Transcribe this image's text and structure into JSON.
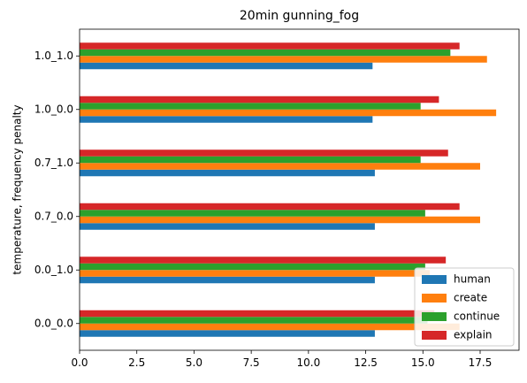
{
  "chart_data": {
    "type": "bar",
    "orientation": "horizontal",
    "title": "20min gunning_fog",
    "xlabel": "",
    "ylabel": "temperature, frequency penalty",
    "categories": [
      "0.0_0.0",
      "0.0_1.0",
      "0.7_0.0",
      "0.7_1.0",
      "1.0_0.0",
      "1.0_1.0"
    ],
    "series": [
      {
        "name": "human",
        "color": "#1f77b4",
        "values": [
          12.9,
          12.9,
          12.9,
          12.9,
          12.8,
          12.8
        ]
      },
      {
        "name": "create",
        "color": "#ff7f0e",
        "values": [
          16.6,
          15.3,
          17.5,
          17.5,
          18.2,
          17.8
        ]
      },
      {
        "name": "continue",
        "color": "#2ca02c",
        "values": [
          15.2,
          15.1,
          15.1,
          14.9,
          14.9,
          16.2
        ]
      },
      {
        "name": "explain",
        "color": "#d62728",
        "values": [
          15.5,
          16.0,
          16.6,
          16.1,
          15.7,
          16.6
        ]
      }
    ],
    "xlim": [
      0,
      19.2
    ],
    "xticks": [
      "0.0",
      "2.5",
      "5.0",
      "7.5",
      "10.0",
      "12.5",
      "15.0",
      "17.5"
    ],
    "grid": false,
    "legend_position": "lower-right"
  }
}
